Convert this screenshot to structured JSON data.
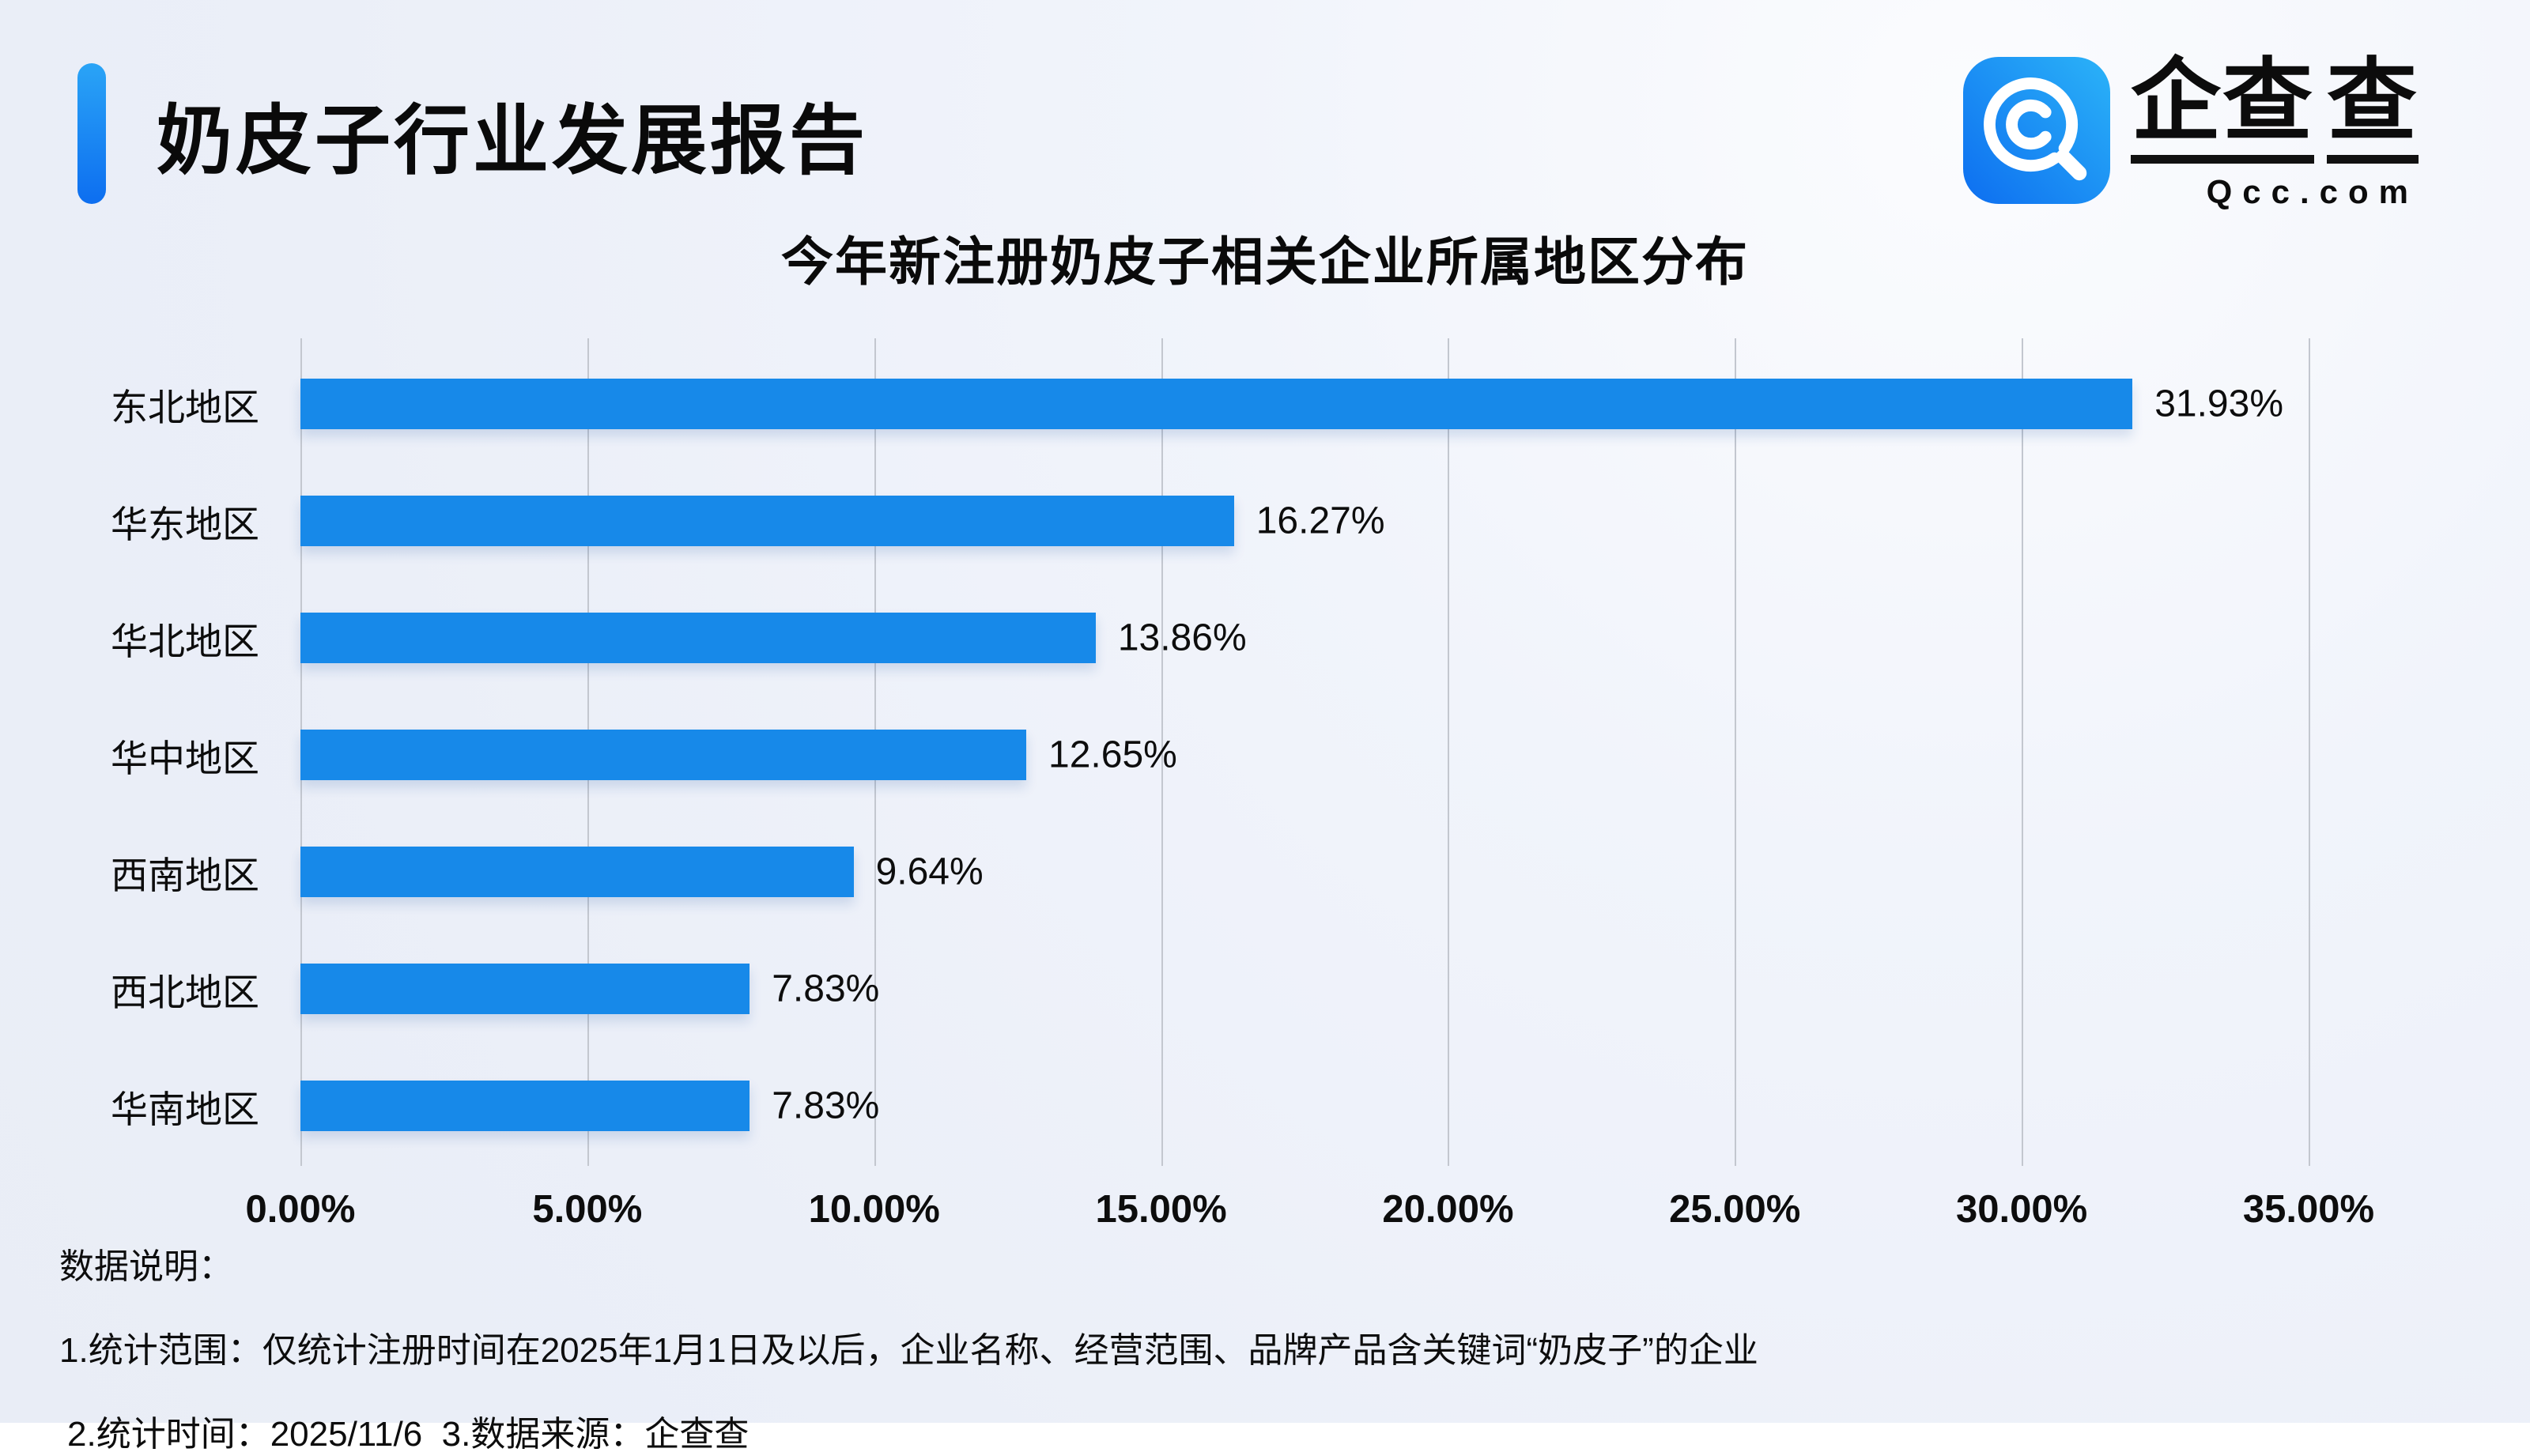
{
  "page": {
    "report_title": "奶皮子行业发展报告",
    "text_color": "#111111",
    "background_color": "#eef2f9"
  },
  "brand": {
    "wordmark_part1": "企查",
    "wordmark_part2": "查",
    "domain": "Qcc.com",
    "icon": "qcc-magnifier-icon",
    "icon_gradient": [
      "#0d6ef0",
      "#2bb3f8"
    ],
    "accent_bar_gradient": [
      "#2aa4f6",
      "#0d6ef0"
    ]
  },
  "chart_data": {
    "type": "bar",
    "orientation": "horizontal",
    "title": "今年新注册奶皮子相关企业所属地区分布",
    "categories": [
      "东北地区",
      "华东地区",
      "华北地区",
      "华中地区",
      "西南地区",
      "西北地区",
      "华南地区"
    ],
    "values": [
      31.93,
      16.27,
      13.86,
      12.65,
      9.64,
      7.83,
      7.83
    ],
    "value_labels": [
      "31.93%",
      "16.27%",
      "13.86%",
      "12.65%",
      "9.64%",
      "7.83%",
      "7.83%"
    ],
    "xlabel": "",
    "ylabel": "",
    "xlim": [
      0,
      35
    ],
    "x_ticks": [
      "0.00%",
      "5.00%",
      "10.00%",
      "15.00%",
      "20.00%",
      "25.00%",
      "30.00%",
      "35.00%"
    ],
    "grid": true,
    "legend": false,
    "bar_color": "#1789e9"
  },
  "notes": {
    "heading": "数据说明：",
    "line1": "1.统计范围：仅统计注册时间在2025年1月1日及以后，企业名称、经营范围、品牌产品含关键词“奶皮子”的企业",
    "line2": "2.统计时间：2025/11/6  3.数据来源：企查查"
  }
}
